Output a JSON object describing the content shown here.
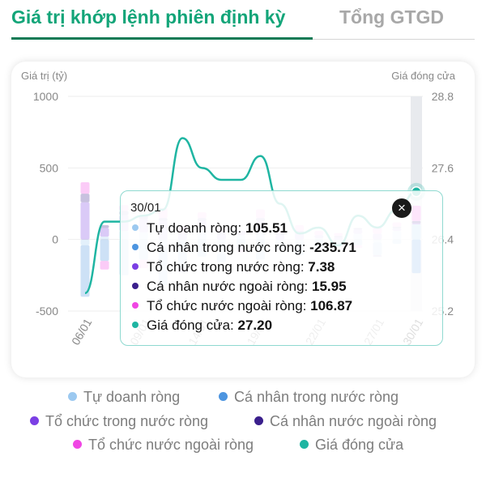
{
  "tabs": {
    "active": "Giá trị khớp lệnh phiên định kỳ",
    "inactive": "Tổng GTGD"
  },
  "colors": {
    "tu_doanh": "#9cc9f0",
    "ca_nhan_trong_nuoc": "#4d95e0",
    "to_chuc_trong_nuoc": "#7b3fe4",
    "ca_nhan_nuoc_ngoai": "#3a1f8c",
    "to_chuc_nuoc_ngoai": "#f046e4",
    "gia_dong_cua": "#1fb5a2"
  },
  "chart_data": {
    "type": "bar",
    "stacked": true,
    "left_axis_label": "Giá trị (tỷ)",
    "right_axis_label": "Giá đóng cửa",
    "left_ticks": [
      "1000",
      "500",
      "0",
      "-500"
    ],
    "right_ticks": [
      "28.8",
      "27.6",
      "26.4",
      "25.2"
    ],
    "ylim_left": [
      -500,
      1000
    ],
    "ylim_right": [
      25.2,
      28.8
    ],
    "x_tick_labels": [
      "06/01",
      "09/01",
      "14/01",
      "19/01",
      "22/01",
      "27/01",
      "30/01"
    ],
    "grid": true,
    "legend_position": "bottom",
    "series": [
      {
        "name": "Tự doanh ròng",
        "values": [
          -40,
          20,
          60,
          50,
          -60,
          -10,
          80,
          -100,
          30,
          70,
          -40,
          -30,
          10,
          -20,
          40,
          -20,
          60,
          105.51
        ]
      },
      {
        "name": "Cá nhân trong nước ròng",
        "values": [
          -360,
          -150,
          -250,
          -140,
          -260,
          -190,
          -120,
          -60,
          -40,
          -140,
          -30,
          -80,
          -60,
          -30,
          -40,
          -90,
          -30,
          -235.71
        ]
      },
      {
        "name": "Tổ chức trong nước ròng",
        "values": [
          260,
          60,
          110,
          90,
          130,
          40,
          50,
          40,
          30,
          60,
          30,
          50,
          20,
          15,
          30,
          40,
          20,
          7.38
        ]
      },
      {
        "name": "Cá nhân nước ngoài ròng",
        "values": [
          60,
          20,
          30,
          30,
          20,
          -30,
          20,
          10,
          -30,
          20,
          10,
          10,
          -10,
          10,
          10,
          -10,
          10,
          15.95
        ]
      },
      {
        "name": "Tổ chức nước ngoài ròng",
        "values": [
          80,
          -60,
          40,
          -60,
          70,
          50,
          40,
          30,
          -20,
          60,
          20,
          40,
          30,
          20,
          -20,
          50,
          30,
          106.87
        ]
      },
      {
        "name": "Giá đóng cửa",
        "values": [
          25.5,
          26.7,
          26.7,
          26.8,
          26.9,
          28.1,
          27.6,
          27.4,
          27.4,
          27.8,
          27.0,
          26.5,
          26.6,
          26.3,
          26.8,
          26.6,
          26.9,
          27.2
        ]
      }
    ]
  },
  "tooltip": {
    "date": "30/01",
    "close": "×",
    "rows": [
      {
        "label": "Tự doanh ròng: ",
        "value": "105.51"
      },
      {
        "label": "Cá nhân trong nước ròng: ",
        "value": "-235.71"
      },
      {
        "label": "Tổ chức trong nước ròng: ",
        "value": "7.38"
      },
      {
        "label": "Cá nhân nước ngoài ròng: ",
        "value": "15.95"
      },
      {
        "label": "Tổ chức nước ngoài ròng: ",
        "value": "106.87"
      },
      {
        "label": "Giá đóng cửa: ",
        "value": "27.20"
      }
    ]
  },
  "legend": [
    "Tự doanh ròng",
    "Cá nhân trong nước ròng",
    "Tổ chức trong nước ròng",
    "Cá nhân nước ngoài ròng",
    "Tổ chức nước ngoài ròng",
    "Giá đóng cửa"
  ]
}
